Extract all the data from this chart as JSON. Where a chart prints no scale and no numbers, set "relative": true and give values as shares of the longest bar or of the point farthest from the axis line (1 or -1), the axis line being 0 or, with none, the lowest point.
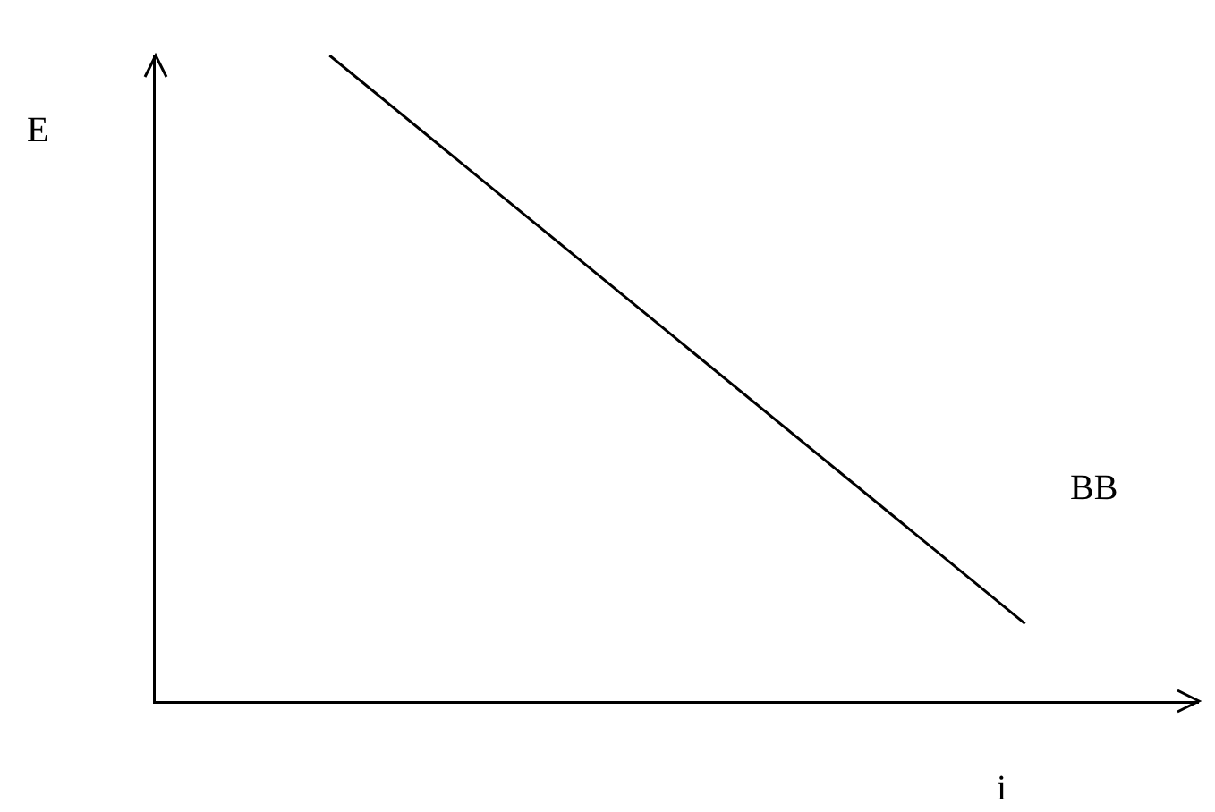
{
  "chart_data": {
    "type": "line",
    "relative": true,
    "xlabel": "i",
    "ylabel": "E",
    "categories": [
      null,
      null,
      null,
      null,
      null,
      null,
      null
    ],
    "series": [
      {
        "name": "BB",
        "color": "#000000",
        "values": [
          null,
          1,
          0.78,
          0.56,
          0.34,
          0.12,
          null
        ]
      }
    ],
    "legend": false,
    "marker": "none",
    "line_style": "solid"
  }
}
